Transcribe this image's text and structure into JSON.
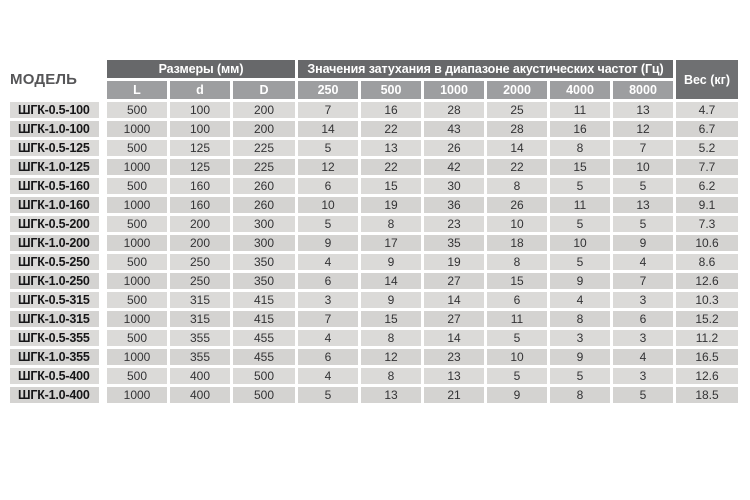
{
  "table": {
    "model_header": "МОДЕЛЬ",
    "dimensions_header": "Размеры (мм)",
    "attenuation_header": "Значения затухания в диапазоне акустических частот (Гц)",
    "weight_header": "Вес (кг)",
    "dimension_columns": [
      "L",
      "d",
      "D"
    ],
    "frequency_columns": [
      "250",
      "500",
      "1000",
      "2000",
      "4000",
      "8000"
    ],
    "rows": [
      {
        "model": "ШГК-0.5-100",
        "L": "500",
        "d": "100",
        "D": "200",
        "values": [
          "7",
          "16",
          "28",
          "25",
          "11",
          "13"
        ],
        "weight": "4.7"
      },
      {
        "model": "ШГК-1.0-100",
        "L": "1000",
        "d": "100",
        "D": "200",
        "values": [
          "14",
          "22",
          "43",
          "28",
          "16",
          "12"
        ],
        "weight": "6.7"
      },
      {
        "model": "ШГК-0.5-125",
        "L": "500",
        "d": "125",
        "D": "225",
        "values": [
          "5",
          "13",
          "26",
          "14",
          "8",
          "7"
        ],
        "weight": "5.2"
      },
      {
        "model": "ШГК-1.0-125",
        "L": "1000",
        "d": "125",
        "D": "225",
        "values": [
          "12",
          "22",
          "42",
          "22",
          "15",
          "10"
        ],
        "weight": "7.7"
      },
      {
        "model": "ШГК-0.5-160",
        "L": "500",
        "d": "160",
        "D": "260",
        "values": [
          "6",
          "15",
          "30",
          "8",
          "5",
          "5"
        ],
        "weight": "6.2"
      },
      {
        "model": "ШГК-1.0-160",
        "L": "1000",
        "d": "160",
        "D": "260",
        "values": [
          "10",
          "19",
          "36",
          "26",
          "11",
          "13"
        ],
        "weight": "9.1"
      },
      {
        "model": "ШГК-0.5-200",
        "L": "500",
        "d": "200",
        "D": "300",
        "values": [
          "5",
          "8",
          "23",
          "10",
          "5",
          "5"
        ],
        "weight": "7.3"
      },
      {
        "model": "ШГК-1.0-200",
        "L": "1000",
        "d": "200",
        "D": "300",
        "values": [
          "9",
          "17",
          "35",
          "18",
          "10",
          "9"
        ],
        "weight": "10.6"
      },
      {
        "model": "ШГК-0.5-250",
        "L": "500",
        "d": "250",
        "D": "350",
        "values": [
          "4",
          "9",
          "19",
          "8",
          "5",
          "4"
        ],
        "weight": "8.6"
      },
      {
        "model": "ШГК-1.0-250",
        "L": "1000",
        "d": "250",
        "D": "350",
        "values": [
          "6",
          "14",
          "27",
          "15",
          "9",
          "7"
        ],
        "weight": "12.6"
      },
      {
        "model": "ШГК-0.5-315",
        "L": "500",
        "d": "315",
        "D": "415",
        "values": [
          "3",
          "9",
          "14",
          "6",
          "4",
          "3"
        ],
        "weight": "10.3"
      },
      {
        "model": "ШГК-1.0-315",
        "L": "1000",
        "d": "315",
        "D": "415",
        "values": [
          "7",
          "15",
          "27",
          "11",
          "8",
          "6"
        ],
        "weight": "15.2"
      },
      {
        "model": "ШГК-0.5-355",
        "L": "500",
        "d": "355",
        "D": "455",
        "values": [
          "4",
          "8",
          "14",
          "5",
          "3",
          "3"
        ],
        "weight": "11.2"
      },
      {
        "model": "ШГК-1.0-355",
        "L": "1000",
        "d": "355",
        "D": "455",
        "values": [
          "6",
          "12",
          "23",
          "10",
          "9",
          "4"
        ],
        "weight": "16.5"
      },
      {
        "model": "ШГК-0.5-400",
        "L": "500",
        "d": "400",
        "D": "500",
        "values": [
          "4",
          "8",
          "13",
          "5",
          "5",
          "3"
        ],
        "weight": "12.6"
      },
      {
        "model": "ШГК-1.0-400",
        "L": "1000",
        "d": "400",
        "D": "500",
        "values": [
          "5",
          "13",
          "21",
          "9",
          "8",
          "5"
        ],
        "weight": "18.5"
      }
    ]
  },
  "colors": {
    "header_band": "#67686a",
    "subheader": "#9d9ea0",
    "weight_header": "#6f7072",
    "row_light": "#dbdad8",
    "row_dark": "#d4d3d1",
    "background": "#ffffff"
  }
}
